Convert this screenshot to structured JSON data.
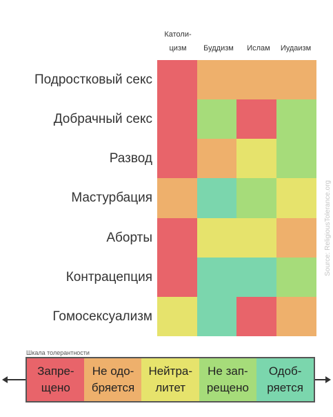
{
  "chart_data": {
    "type": "heatmap",
    "columns": [
      "Католи-\nцизм",
      "Буддизм",
      "Ислам",
      "Иудаизм"
    ],
    "rows": [
      "Подростковый секс",
      "Добрачный секс",
      "Развод",
      "Мастурбация",
      "Аборты",
      "Контрацепция",
      "Гомосексуализм"
    ],
    "values": [
      [
        1,
        2,
        2,
        2
      ],
      [
        1,
        4,
        1,
        4
      ],
      [
        1,
        2,
        3,
        4
      ],
      [
        2,
        5,
        4,
        3
      ],
      [
        1,
        3,
        3,
        2
      ],
      [
        1,
        5,
        5,
        4
      ],
      [
        3,
        5,
        1,
        2
      ]
    ],
    "scale_title": "Шкала толерантности",
    "scale": [
      {
        "level": 1,
        "label": "Запре-\nщено",
        "color": "#e8646a"
      },
      {
        "level": 2,
        "label": "Не одо-\nбряется",
        "color": "#eeb06c"
      },
      {
        "level": 3,
        "label": "Нейтра-\nлитет",
        "color": "#e6e36c"
      },
      {
        "level": 4,
        "label": "Не зап-\nрещено",
        "color": "#a6dc7a"
      },
      {
        "level": 5,
        "label": "Одоб-\nряется",
        "color": "#7bd6ad"
      }
    ],
    "source": "Source: ReligiousTolerance.org"
  }
}
